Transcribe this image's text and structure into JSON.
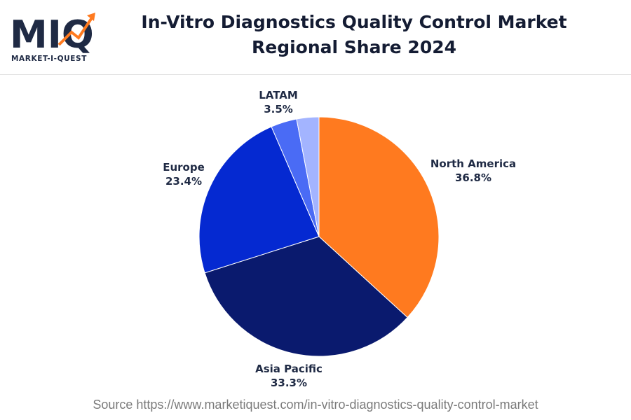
{
  "brand": {
    "logo_text": "MIQ",
    "logo_subtext": "MARKET-I-QUEST"
  },
  "header": {
    "title_line1": "In-Vitro Diagnostics Quality Control Market",
    "title_line2": "Regional Share 2024"
  },
  "chart_data": {
    "type": "pie",
    "title": "In-Vitro Diagnostics Quality Control Market Regional Share 2024",
    "slices": [
      {
        "label": "North America",
        "value": 36.8,
        "display": "36.8%",
        "color": "#ff7a1f"
      },
      {
        "label": "Asia Pacific",
        "value": 33.3,
        "display": "33.3%",
        "color": "#0a1a6e"
      },
      {
        "label": "Europe",
        "value": 23.4,
        "display": "23.4%",
        "color": "#0529d1"
      },
      {
        "label": "LATAM",
        "value": 3.5,
        "display": "3.5%",
        "color": "#4a6bf5"
      },
      {
        "label": "",
        "value": 3.0,
        "display": "",
        "color": "#a3b4ff"
      }
    ]
  },
  "footer": {
    "source": "Source https://www.marketiquest.com/in-vitro-diagnostics-quality-control-market"
  }
}
